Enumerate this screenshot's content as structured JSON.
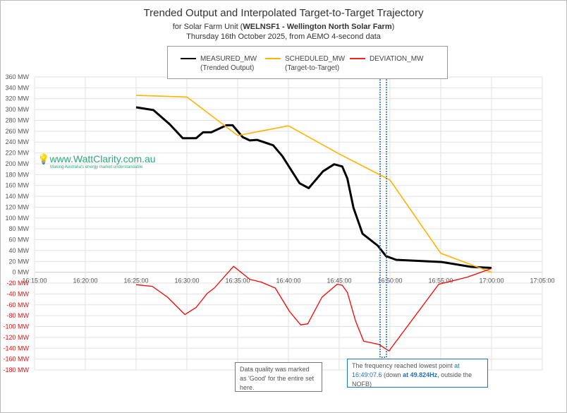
{
  "title": "Trended Output and Interpolated Target-to-Target Trajectory",
  "subtitle_prefix": "for Solar Farm Unit (",
  "subtitle_bold": "WELNSF1 - Wellington North Solar Farm",
  "subtitle_suffix": ")",
  "subtitle2": "Thursday 16th October 2025, from AEMO 4-second data",
  "watermark": {
    "text": "www.WattClarity.com.au",
    "tagline": "Making Australia's energy market understandable"
  },
  "notes": {
    "quality": "Data quality was marked as 'Good' for the entire set here.",
    "freq_prefix": "The frequency reached lowest point ",
    "freq_at1": "at 16:49:07.6",
    "freq_mid": " (down ",
    "freq_at2": "at 49.824Hz",
    "freq_suffix": ", outside the NOFB)"
  },
  "chart_data": {
    "type": "line",
    "title": "Trended Output and Interpolated Target-to-Target Trajectory",
    "xlabel": "",
    "ylabel": "",
    "x_unit": "minutes past 16:00",
    "xlim": [
      15,
      65
    ],
    "ylim": [
      -180,
      360
    ],
    "y_ticks": [
      360,
      340,
      320,
      300,
      280,
      260,
      240,
      220,
      200,
      180,
      160,
      140,
      120,
      100,
      80,
      60,
      40,
      20,
      0,
      -20,
      -40,
      -60,
      -80,
      -100,
      -120,
      -140,
      -160,
      -180
    ],
    "y_tick_suffix": " MW",
    "x_ticks": [
      "16:15:00",
      "16:20:00",
      "16:25:00",
      "16:30:00",
      "16:35:00",
      "16:40:00",
      "16:45:00",
      "16:50:00",
      "16:55:00",
      "17:00:00",
      "17:05:00"
    ],
    "grid": true,
    "legend_position": "top-center",
    "highlight_time": "16:49:07.6",
    "series": [
      {
        "name": "MEASURED_MW",
        "sub": "(Trended Output)",
        "color": "#000000",
        "points": [
          [
            25,
            304
          ],
          [
            26.7,
            299
          ],
          [
            28.3,
            273
          ],
          [
            29.6,
            247
          ],
          [
            30.9,
            247
          ],
          [
            31.6,
            258
          ],
          [
            32.4,
            258
          ],
          [
            33.9,
            271
          ],
          [
            34.5,
            271
          ],
          [
            35.5,
            249
          ],
          [
            36.2,
            243
          ],
          [
            36.9,
            244
          ],
          [
            38.5,
            234
          ],
          [
            39.4,
            214
          ],
          [
            41.1,
            164
          ],
          [
            42,
            155
          ],
          [
            43.4,
            186
          ],
          [
            44.5,
            199
          ],
          [
            45.3,
            195
          ],
          [
            45.8,
            173
          ],
          [
            46.4,
            119
          ],
          [
            47.3,
            71
          ],
          [
            48.8,
            49
          ],
          [
            49.6,
            30
          ],
          [
            50.6,
            23
          ],
          [
            55.1,
            19
          ],
          [
            58,
            10
          ],
          [
            60,
            8
          ]
        ]
      },
      {
        "name": "SCHEDULED_MW",
        "sub": "(Target-to-Target)",
        "color": "#ffb400",
        "points": [
          [
            25,
            326
          ],
          [
            30,
            323
          ],
          [
            35,
            252
          ],
          [
            40,
            270
          ],
          [
            45,
            218
          ],
          [
            50,
            170
          ],
          [
            55,
            35
          ],
          [
            60,
            0
          ]
        ]
      },
      {
        "name": "DEVIATION_MW",
        "sub": "",
        "color": "#ff0000",
        "points": [
          [
            25,
            -23
          ],
          [
            26.6,
            -26
          ],
          [
            28.1,
            -46
          ],
          [
            29.8,
            -78
          ],
          [
            30.9,
            -65
          ],
          [
            32,
            -39
          ],
          [
            32.7,
            -29
          ],
          [
            34.6,
            11
          ],
          [
            36.2,
            -13
          ],
          [
            37.3,
            -18
          ],
          [
            38.7,
            -29
          ],
          [
            40.1,
            -72
          ],
          [
            41.2,
            -97
          ],
          [
            41.9,
            -95
          ],
          [
            43.3,
            -46
          ],
          [
            44.8,
            -22
          ],
          [
            45.3,
            -24
          ],
          [
            45.8,
            -37
          ],
          [
            46.6,
            -89
          ],
          [
            47.4,
            -127
          ],
          [
            48.9,
            -133
          ],
          [
            49.9,
            -145
          ],
          [
            54.8,
            -22
          ],
          [
            57.6,
            -9
          ],
          [
            60,
            7
          ]
        ]
      }
    ]
  }
}
